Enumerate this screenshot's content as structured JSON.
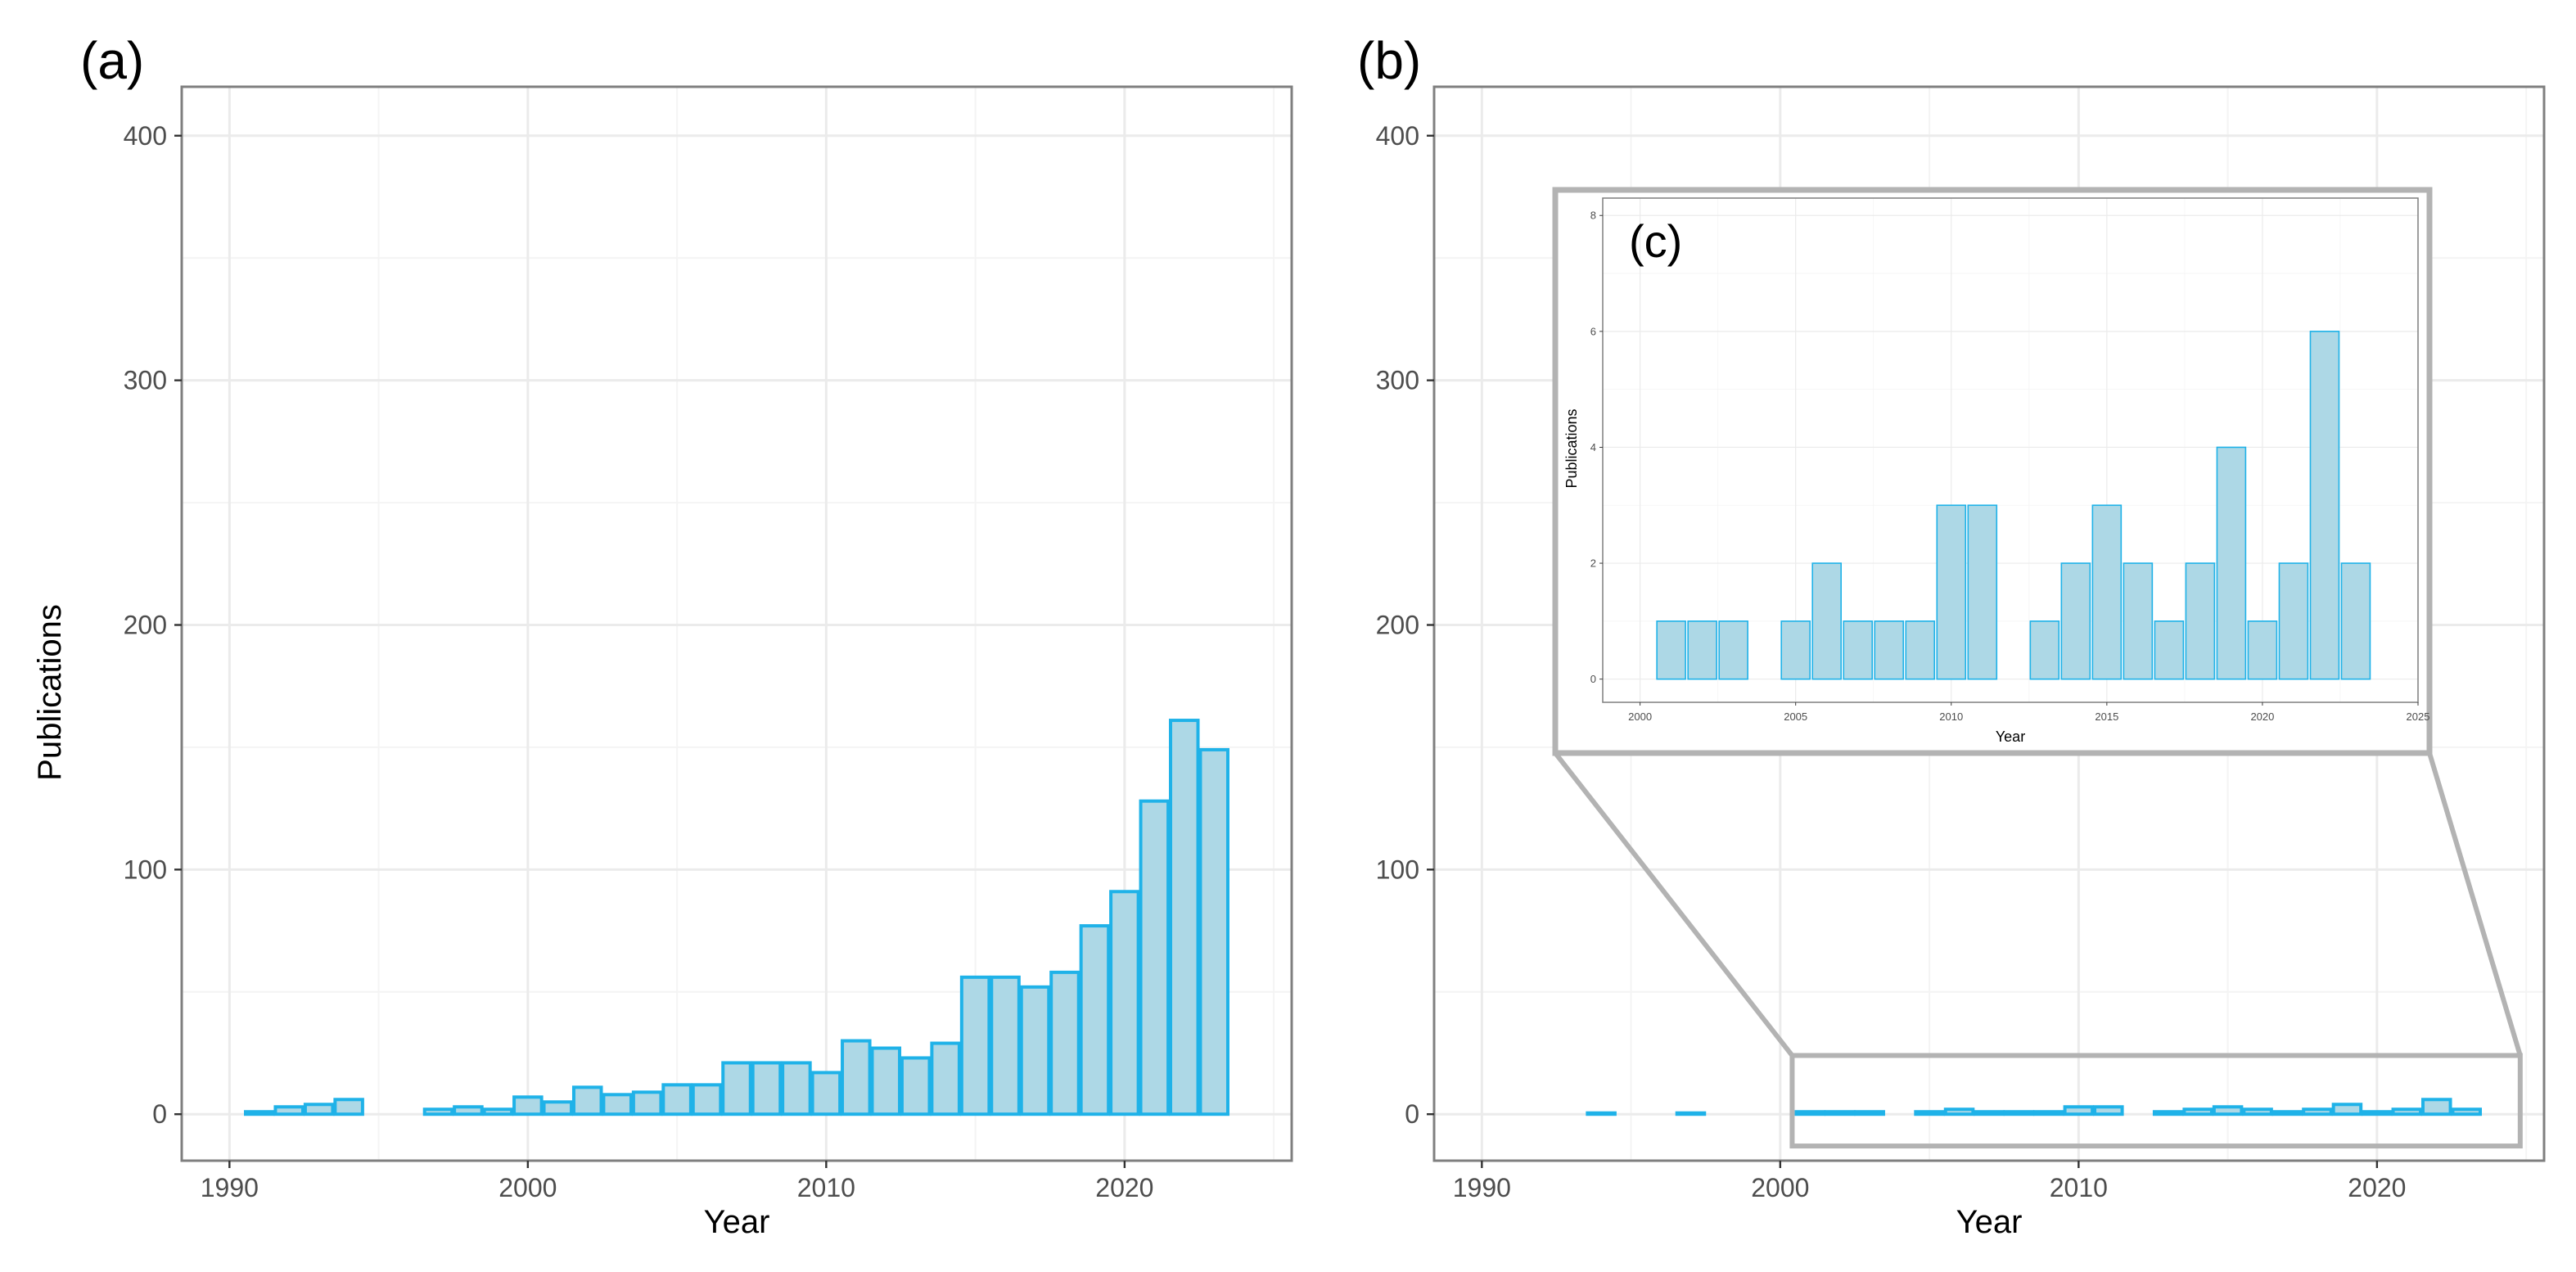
{
  "colors": {
    "bar_fill": "#add8e6",
    "bar_stroke": "#1fb2e8",
    "grid_major": "#ebebeb",
    "grid_minor": "#f4f4f4",
    "panel_border": "#7f7f7f",
    "zoom_frame": "#b3b3b3",
    "tick_text": "#4d4d4d"
  },
  "chart_data": [
    {
      "id": "a",
      "panel_label": "(a)",
      "type": "bar",
      "xlabel": "Year",
      "ylabel": "Publications",
      "xlim": [
        1988.4,
        2025.6
      ],
      "ylim": [
        -19,
        420
      ],
      "x_ticks": [
        1990,
        2000,
        2010,
        2020
      ],
      "y_ticks": [
        0,
        100,
        200,
        300,
        400
      ],
      "grid": true,
      "x": [
        1991,
        1992,
        1993,
        1994,
        1997,
        1998,
        1999,
        2000,
        2001,
        2002,
        2003,
        2004,
        2005,
        2006,
        2007,
        2008,
        2009,
        2010,
        2011,
        2012,
        2013,
        2014,
        2015,
        2016,
        2017,
        2018,
        2019,
        2020,
        2021,
        2022,
        2023
      ],
      "values": [
        1,
        3,
        4,
        6,
        2,
        3,
        2,
        7,
        5,
        11,
        8,
        9,
        12,
        12,
        21,
        21,
        21,
        17,
        30,
        27,
        23,
        29,
        56,
        56,
        52,
        58,
        77,
        91,
        128,
        161,
        149
      ]
    },
    {
      "id": "b",
      "panel_label": "(b)",
      "type": "bar",
      "xlabel": "Year",
      "ylabel": "",
      "xlim": [
        1988.4,
        2025.6
      ],
      "ylim": [
        -19,
        420
      ],
      "x_ticks": [
        1990,
        2000,
        2010,
        2020
      ],
      "y_ticks": [
        0,
        100,
        200,
        300,
        400
      ],
      "grid": true,
      "x": [
        1994,
        1997,
        2001,
        2002,
        2003,
        2005,
        2006,
        2007,
        2008,
        2009,
        2010,
        2011,
        2013,
        2014,
        2015,
        2016,
        2017,
        2018,
        2019,
        2020,
        2021,
        2022,
        2023
      ],
      "values": [
        0.5,
        0.5,
        1,
        1,
        1,
        1,
        2,
        1,
        1,
        1,
        3,
        3,
        1,
        2,
        3,
        2,
        1,
        2,
        4,
        1,
        2,
        6,
        2
      ],
      "zoom_region": {
        "x": [
          2000.4,
          2024.8
        ],
        "y": [
          -13,
          24
        ]
      }
    },
    {
      "id": "c",
      "panel_label": "(c)",
      "type": "bar",
      "inset_of": "b",
      "xlabel": "Year",
      "ylabel": "Publications",
      "xlim": [
        1998.8,
        2025
      ],
      "ylim": [
        -0.4,
        8.3
      ],
      "x_ticks": [
        2000,
        2005,
        2010,
        2015,
        2020,
        2025
      ],
      "y_ticks": [
        0,
        2,
        4,
        6,
        8
      ],
      "grid": true,
      "x": [
        2001,
        2002,
        2003,
        2005,
        2006,
        2007,
        2008,
        2009,
        2010,
        2011,
        2013,
        2014,
        2015,
        2016,
        2017,
        2018,
        2019,
        2020,
        2021,
        2022,
        2023
      ],
      "values": [
        1,
        1,
        1,
        1,
        2,
        1,
        1,
        1,
        3,
        3,
        1,
        2,
        3,
        2,
        1,
        2,
        4,
        1,
        2,
        6,
        2
      ]
    }
  ]
}
